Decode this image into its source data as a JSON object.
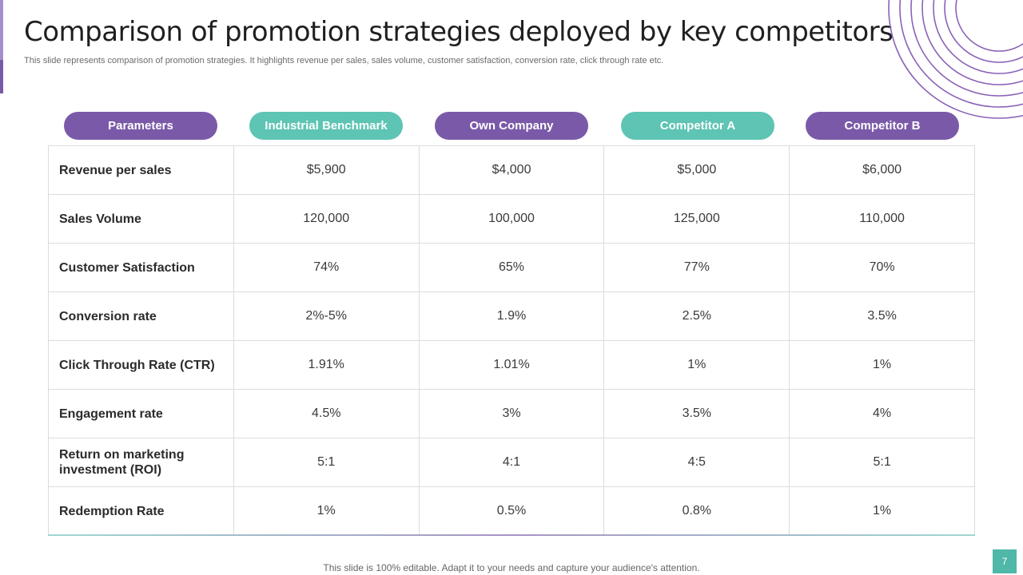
{
  "slide": {
    "title": "Comparison of promotion strategies deployed by key competitors",
    "subtitle": "This slide represents comparison of promotion strategies. It highlights revenue per sales, sales volume, customer satisfaction, conversion rate, click through rate etc.",
    "footer": "This slide is 100% editable. Adapt it to your needs and capture your audience's attention.",
    "page_number": "7"
  },
  "colors": {
    "purple": "#7a5aa8",
    "teal": "#5ec4b4",
    "page_badge": "#4fb8a8"
  },
  "table": {
    "headers": [
      "Parameters",
      "Industrial Benchmark",
      "Own Company",
      "Competitor A",
      "Competitor B"
    ],
    "rows": [
      [
        "Revenue per sales",
        "$5,900",
        "$4,000",
        "$5,000",
        "$6,000"
      ],
      [
        "Sales Volume",
        "120,000",
        "100,000",
        "125,000",
        "110,000"
      ],
      [
        "Customer Satisfaction",
        "74%",
        "65%",
        "77%",
        "70%"
      ],
      [
        "Conversion rate",
        "2%-5%",
        "1.9%",
        "2.5%",
        "3.5%"
      ],
      [
        "Click  Through Rate (CTR)",
        "1.91%",
        "1.01%",
        "1%",
        "1%"
      ],
      [
        "Engagement rate",
        "4.5%",
        "3%",
        "3.5%",
        "4%"
      ],
      [
        "Return on marketing investment (ROI)",
        "5:1",
        "4:1",
        "4:5",
        "5:1"
      ],
      [
        "Redemption Rate",
        "1%",
        "0.5%",
        "0.8%",
        "1%"
      ]
    ]
  }
}
